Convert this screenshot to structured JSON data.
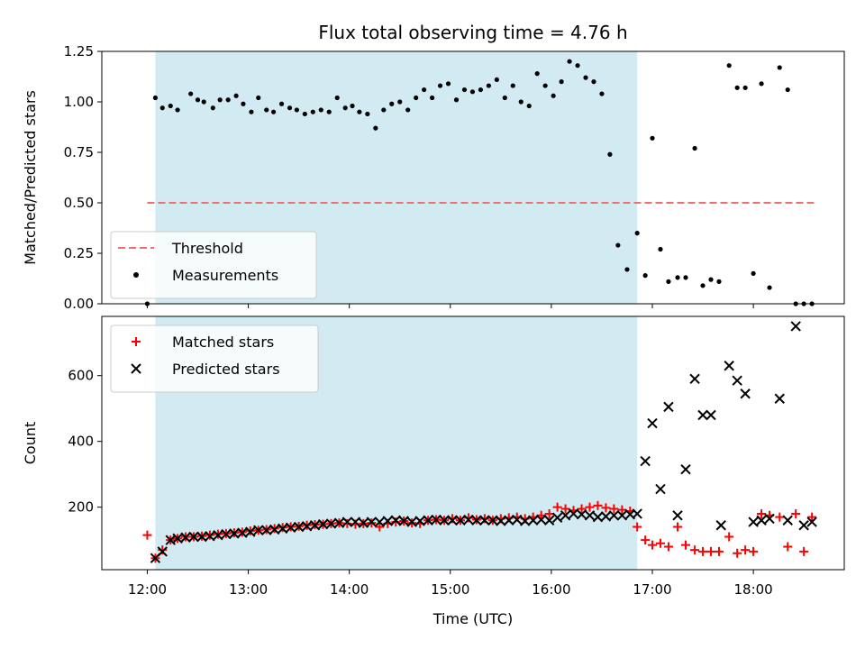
{
  "chart_data": {
    "title": "Flux total observing time = 4.76 h",
    "xlabel": "Time (UTC)",
    "x_ticks": [
      "12:00",
      "13:00",
      "14:00",
      "15:00",
      "16:00",
      "17:00",
      "18:00"
    ],
    "x_range_hours": [
      11.55,
      18.9
    ],
    "observing_window_hours": [
      12.08,
      16.85
    ],
    "window_color": "#add8e6",
    "panels": [
      {
        "type": "scatter",
        "ylabel": "Matched/Predicted stars",
        "ylim": [
          0,
          1.25
        ],
        "y_ticks": [
          0.0,
          0.25,
          0.5,
          0.75,
          1.0,
          1.25
        ],
        "y_tick_labels": [
          "0.00",
          "0.25",
          "0.50",
          "0.75",
          "1.00",
          "1.25"
        ],
        "legend_position": "lower-left",
        "threshold": {
          "name": "Threshold",
          "value": 0.5,
          "x_from": 12.0,
          "x_to": 18.6,
          "color": "#f07070"
        },
        "series": [
          {
            "name": "Measurements",
            "color": "#000000",
            "x": [
              12.0,
              12.08,
              12.15,
              12.23,
              12.3,
              12.43,
              12.5,
              12.56,
              12.65,
              12.72,
              12.8,
              12.88,
              12.95,
              13.03,
              13.1,
              13.18,
              13.25,
              13.33,
              13.41,
              13.48,
              13.56,
              13.64,
              13.72,
              13.8,
              13.88,
              13.96,
              14.03,
              14.1,
              14.18,
              14.26,
              14.34,
              14.42,
              14.5,
              14.58,
              14.66,
              14.74,
              14.82,
              14.9,
              14.98,
              15.06,
              15.14,
              15.22,
              15.3,
              15.38,
              15.46,
              15.54,
              15.62,
              15.7,
              15.78,
              15.86,
              15.94,
              16.02,
              16.1,
              16.18,
              16.26,
              16.34,
              16.42,
              16.5,
              16.58,
              16.66,
              16.75,
              16.85,
              16.93,
              17.0,
              17.08,
              17.16,
              17.25,
              17.33,
              17.42,
              17.5,
              17.58,
              17.66,
              17.76,
              17.84,
              17.92,
              18.0,
              18.08,
              18.16,
              18.26,
              18.34,
              18.42,
              18.5,
              18.58
            ],
            "y": [
              0.0,
              1.02,
              0.97,
              0.98,
              0.96,
              1.04,
              1.01,
              1.0,
              0.97,
              1.01,
              1.01,
              1.03,
              0.99,
              0.95,
              1.02,
              0.96,
              0.95,
              0.99,
              0.97,
              0.96,
              0.94,
              0.95,
              0.96,
              0.95,
              1.02,
              0.97,
              0.98,
              0.95,
              0.94,
              0.87,
              0.96,
              0.99,
              1.0,
              0.96,
              1.02,
              1.06,
              1.02,
              1.08,
              1.09,
              1.01,
              1.06,
              1.05,
              1.06,
              1.08,
              1.11,
              1.02,
              1.08,
              1.0,
              0.98,
              1.14,
              1.08,
              1.03,
              1.1,
              1.2,
              1.18,
              1.12,
              1.1,
              1.04,
              0.74,
              0.29,
              0.17,
              0.35,
              0.14,
              0.82,
              0.27,
              0.11,
              0.13,
              0.13,
              0.77,
              0.09,
              0.12,
              0.11,
              1.18,
              1.07,
              1.07,
              0.15,
              1.09,
              0.08,
              1.17,
              1.06,
              0.0,
              0.0,
              0.0
            ]
          }
        ]
      },
      {
        "type": "scatter",
        "ylabel": "Count",
        "ylim": [
          10,
          780
        ],
        "y_ticks": [
          200,
          400,
          600
        ],
        "y_tick_labels": [
          "200",
          "400",
          "600"
        ],
        "legend_position": "upper-left",
        "series": [
          {
            "name": "Matched stars",
            "marker": "+",
            "color": "#ff0000",
            "x": [
              12.0,
              12.08,
              12.15,
              12.23,
              12.3,
              12.38,
              12.46,
              12.54,
              12.62,
              12.7,
              12.78,
              12.86,
              12.94,
              13.02,
              13.1,
              13.18,
              13.26,
              13.34,
              13.42,
              13.5,
              13.58,
              13.66,
              13.74,
              13.82,
              13.9,
              13.98,
              14.06,
              14.14,
              14.22,
              14.3,
              14.38,
              14.46,
              14.54,
              14.62,
              14.7,
              14.78,
              14.86,
              14.94,
              15.02,
              15.1,
              15.18,
              15.26,
              15.34,
              15.42,
              15.5,
              15.58,
              15.66,
              15.74,
              15.82,
              15.9,
              15.98,
              16.06,
              16.14,
              16.22,
              16.3,
              16.38,
              16.46,
              16.54,
              16.62,
              16.7,
              16.78,
              16.85,
              16.93,
              17.0,
              17.08,
              17.16,
              17.25,
              17.33,
              17.42,
              17.5,
              17.58,
              17.66,
              17.76,
              17.84,
              17.92,
              18.0,
              18.08,
              18.16,
              18.26,
              18.34,
              18.42,
              18.5,
              18.58
            ],
            "y": [
              115,
              45,
              70,
              100,
              105,
              110,
              110,
              112,
              115,
              118,
              120,
              122,
              124,
              128,
              130,
              132,
              135,
              138,
              140,
              142,
              145,
              147,
              148,
              150,
              152,
              150,
              148,
              150,
              152,
              140,
              150,
              155,
              158,
              152,
              150,
              160,
              162,
              160,
              165,
              160,
              168,
              162,
              165,
              160,
              165,
              168,
              170,
              165,
              170,
              175,
              180,
              200,
              195,
              190,
              195,
              200,
              205,
              198,
              195,
              192,
              188,
              140,
              100,
              85,
              90,
              80,
              140,
              85,
              70,
              65,
              65,
              65,
              110,
              60,
              70,
              65,
              180,
              175,
              170,
              80,
              180,
              65,
              170
            ]
          },
          {
            "name": "Predicted stars",
            "marker": "x",
            "color": "#000000",
            "x": [
              12.08,
              12.15,
              12.23,
              12.3,
              12.38,
              12.46,
              12.54,
              12.62,
              12.7,
              12.78,
              12.86,
              12.94,
              13.02,
              13.1,
              13.18,
              13.26,
              13.34,
              13.42,
              13.5,
              13.58,
              13.66,
              13.74,
              13.82,
              13.9,
              13.98,
              14.06,
              14.14,
              14.22,
              14.3,
              14.38,
              14.46,
              14.54,
              14.62,
              14.7,
              14.78,
              14.86,
              14.94,
              15.02,
              15.1,
              15.18,
              15.26,
              15.34,
              15.42,
              15.5,
              15.58,
              15.66,
              15.74,
              15.82,
              15.9,
              15.98,
              16.06,
              16.14,
              16.22,
              16.3,
              16.38,
              16.46,
              16.54,
              16.62,
              16.7,
              16.78,
              16.85,
              16.93,
              17.0,
              17.08,
              17.16,
              17.25,
              17.33,
              17.42,
              17.5,
              17.58,
              17.68,
              17.76,
              17.84,
              17.92,
              18.0,
              18.08,
              18.16,
              18.26,
              18.34,
              18.42,
              18.5,
              18.58
            ],
            "y": [
              45,
              65,
              100,
              105,
              108,
              110,
              110,
              112,
              115,
              118,
              120,
              122,
              125,
              130,
              130,
              132,
              135,
              138,
              140,
              142,
              145,
              148,
              150,
              152,
              155,
              155,
              152,
              155,
              155,
              158,
              160,
              158,
              155,
              158,
              160,
              162,
              160,
              160,
              160,
              162,
              160,
              160,
              160,
              158,
              160,
              162,
              158,
              160,
              162,
              160,
              168,
              175,
              180,
              178,
              175,
              170,
              172,
              175,
              175,
              178,
              180,
              340,
              455,
              255,
              505,
              175,
              315,
              590,
              480,
              480,
              145,
              630,
              585,
              545,
              155,
              160,
              165,
              530,
              160,
              750,
              145,
              155
            ]
          }
        ]
      }
    ]
  }
}
